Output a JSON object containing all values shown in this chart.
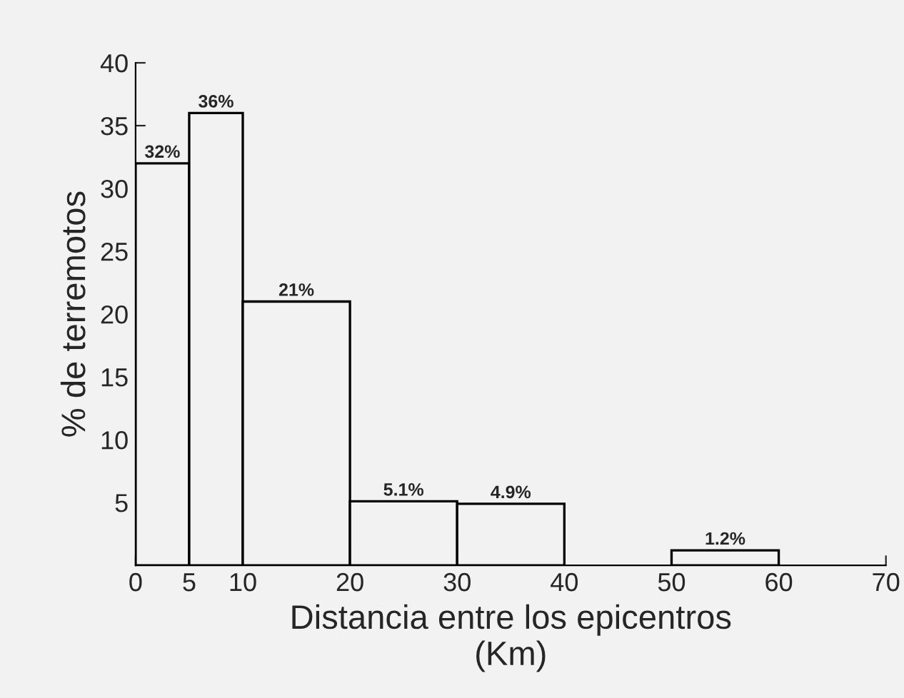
{
  "chart_data": {
    "type": "histogram",
    "xlabel": "Distancia entre los epicentros\n(Km)",
    "ylabel": "% de terremotos",
    "bins": [
      0,
      5,
      10,
      20,
      30,
      40,
      50,
      60
    ],
    "values": [
      32,
      36,
      21,
      5.1,
      4.9,
      null,
      1.2
    ],
    "value_labels": [
      "32%",
      "36%",
      "21%",
      "5.1%",
      "4.9%",
      null,
      "1.2%"
    ],
    "color": "#f2f2f2",
    "xlim": [
      0,
      70
    ],
    "xticks": [
      0,
      5,
      10,
      20,
      30,
      40,
      50,
      60,
      70
    ],
    "ylim": [
      0,
      40
    ],
    "yticks": [
      5,
      10,
      15,
      20,
      25,
      30,
      35,
      40
    ],
    "grid": false,
    "legend": false
  }
}
